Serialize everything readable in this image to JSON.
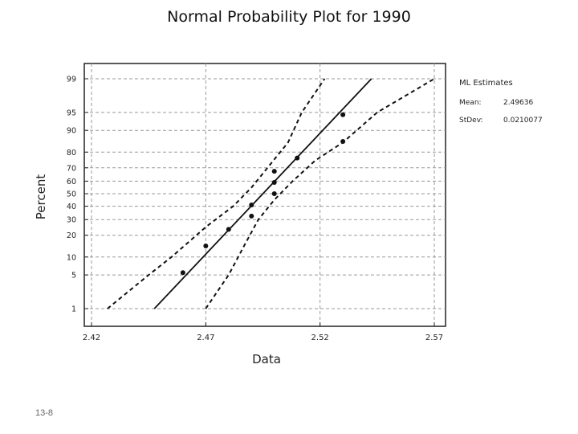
{
  "slide_number": "13-8",
  "chart_data": {
    "type": "scatter",
    "title": "Normal Probability Plot for 1990",
    "xlabel": "Data",
    "ylabel": "Percent",
    "xlim": [
      2.42,
      2.57
    ],
    "x_ticks": [
      "2.42",
      "2.47",
      "2.52",
      "2.57"
    ],
    "y_scale": "normal-probability",
    "y_ticks": [
      1,
      5,
      10,
      20,
      30,
      40,
      50,
      60,
      70,
      80,
      90,
      95,
      99
    ],
    "grid": true,
    "points": [
      {
        "x": 2.46,
        "y": 5.5
      },
      {
        "x": 2.47,
        "y": 14.5
      },
      {
        "x": 2.48,
        "y": 23.5
      },
      {
        "x": 2.49,
        "y": 32.5
      },
      {
        "x": 2.49,
        "y": 41
      },
      {
        "x": 2.5,
        "y": 50
      },
      {
        "x": 2.5,
        "y": 59
      },
      {
        "x": 2.5,
        "y": 67.5
      },
      {
        "x": 2.51,
        "y": 76.5
      },
      {
        "x": 2.53,
        "y": 85.5
      },
      {
        "x": 2.53,
        "y": 94.5
      }
    ],
    "fit_line": [
      {
        "x": 2.4475,
        "y": 1
      },
      {
        "x": 2.5425,
        "y": 99
      }
    ],
    "confidence_upper": [
      {
        "x": 2.427,
        "y": 1
      },
      {
        "x": 2.445,
        "y": 5
      },
      {
        "x": 2.455,
        "y": 10
      },
      {
        "x": 2.47,
        "y": 25
      },
      {
        "x": 2.482,
        "y": 40
      },
      {
        "x": 2.49,
        "y": 55
      },
      {
        "x": 2.497,
        "y": 70
      },
      {
        "x": 2.506,
        "y": 85
      },
      {
        "x": 2.512,
        "y": 95
      },
      {
        "x": 2.522,
        "y": 99
      }
    ],
    "confidence_lower": [
      {
        "x": 2.47,
        "y": 1
      },
      {
        "x": 2.48,
        "y": 5
      },
      {
        "x": 2.487,
        "y": 15
      },
      {
        "x": 2.493,
        "y": 30
      },
      {
        "x": 2.5,
        "y": 45
      },
      {
        "x": 2.508,
        "y": 60
      },
      {
        "x": 2.518,
        "y": 75
      },
      {
        "x": 2.53,
        "y": 85
      },
      {
        "x": 2.545,
        "y": 95
      },
      {
        "x": 2.57,
        "y": 99
      }
    ],
    "legend": {
      "heading": "ML Estimates",
      "mean_label": "Mean:",
      "mean_value": "2.49636",
      "stdev_label": "StDev:",
      "stdev_value": "0.0210077"
    }
  }
}
